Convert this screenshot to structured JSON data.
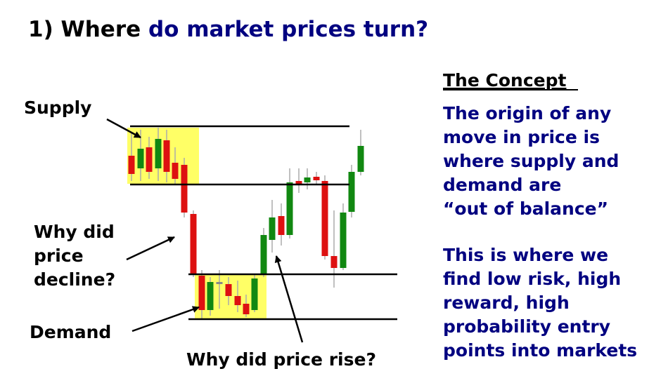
{
  "title": {
    "lead": "1) Where",
    "rest": "do market prices turn?"
  },
  "labels": {
    "supply": "Supply",
    "decline": [
      "Why did",
      "price",
      "decline?"
    ],
    "demand": "Demand",
    "rise": "Why did price rise?"
  },
  "concept": {
    "heading": "The Concept",
    "paragraph1": [
      "The origin of any",
      "move in price is",
      "where supply and",
      "demand are",
      "“out of balance”"
    ],
    "paragraph2": [
      "This is where we",
      "find low risk, high",
      "reward, high",
      "probability entry",
      "points into markets"
    ]
  }
}
